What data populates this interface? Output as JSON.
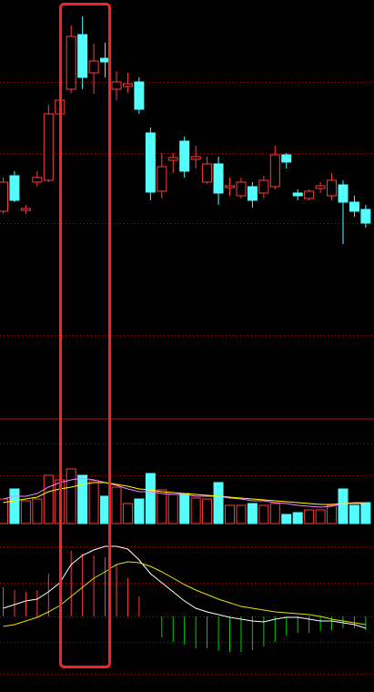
{
  "chart_data": [
    {
      "type": "candlestick",
      "up_color": "#ff3b3b",
      "down_color": "#54fcfc",
      "open": [
        228,
        267,
        229,
        260,
        262,
        335,
        362,
        422,
        380,
        396,
        362,
        365,
        370,
        314,
        250,
        284,
        305,
        285,
        260,
        280,
        254,
        245,
        255,
        248,
        255,
        290,
        248,
        242,
        253,
        245,
        257,
        238,
        230
      ],
      "close": [
        260,
        240,
        231,
        265,
        335,
        350,
        420,
        375,
        393,
        392,
        370,
        368,
        340,
        249,
        277,
        287,
        272,
        288,
        280,
        248,
        256,
        260,
        240,
        262,
        290,
        282,
        245,
        250,
        256,
        262,
        238,
        228,
        215
      ],
      "high": [
        265,
        272,
        235,
        272,
        345,
        355,
        432,
        442,
        412,
        413,
        382,
        380,
        375,
        320,
        292,
        292,
        310,
        300,
        288,
        288,
        265,
        265,
        260,
        267,
        300,
        292,
        252,
        252,
        260,
        270,
        262,
        245,
        235
      ],
      "low": [
        225,
        238,
        225,
        255,
        260,
        330,
        358,
        362,
        357,
        375,
        350,
        358,
        335,
        240,
        242,
        270,
        265,
        275,
        258,
        235,
        245,
        242,
        232,
        242,
        252,
        275,
        240,
        240,
        248,
        240,
        192,
        222,
        210
      ],
      "ylim": [
        0,
        460
      ],
      "yticks": [
        92,
        215,
        292,
        370
      ],
      "grid": true
    },
    {
      "type": "volume",
      "values": [
        27,
        38,
        25,
        27,
        53,
        48,
        60,
        53,
        47,
        30,
        40,
        22,
        27,
        55,
        37,
        32,
        33,
        28,
        27,
        45,
        20,
        20,
        22,
        20,
        22,
        10,
        12,
        15,
        15,
        20,
        38,
        20,
        23
      ],
      "series": [
        {
          "color": "#ff80ff",
          "values": [
            27,
            30,
            30,
            33,
            40,
            45,
            48,
            50,
            48,
            45,
            42,
            38,
            35,
            35,
            33,
            32,
            32,
            30,
            30,
            30,
            28,
            27,
            25,
            25,
            23,
            22,
            20,
            19,
            18,
            19,
            22,
            23,
            23
          ]
        },
        {
          "color": "#ffff00",
          "values": [
            23,
            25,
            27,
            29,
            35,
            38,
            40,
            43,
            45,
            45,
            43,
            41,
            38,
            37,
            35,
            34,
            33,
            32,
            31,
            30,
            29,
            28,
            27,
            26,
            25,
            24,
            23,
            22,
            21,
            21,
            22,
            22,
            22
          ]
        }
      ],
      "ylim": [
        0,
        115
      ],
      "yticks": [
        53,
        88
      ],
      "grid": true
    },
    {
      "type": "macd",
      "up_color": "#ff3b3b",
      "down_color": "#00d000",
      "values": [
        32,
        29,
        27,
        29,
        47,
        52,
        72,
        69,
        67,
        65,
        57,
        42,
        22,
        0,
        -23,
        -28,
        -31,
        -35,
        -35,
        -38,
        -39,
        -39,
        -37,
        -33,
        -28,
        -21,
        -18,
        -18,
        -16,
        -15,
        -13,
        -13,
        -15
      ],
      "series": [
        {
          "color": "#ffffff",
          "values": [
            9,
            13,
            17,
            19,
            27,
            37,
            57,
            67,
            73,
            77,
            77,
            74,
            62,
            47,
            37,
            27,
            17,
            9,
            5,
            2,
            -1,
            -3,
            -5,
            -6,
            -3,
            -1,
            -1,
            -3,
            -5,
            -5,
            -7,
            -9,
            -13
          ]
        },
        {
          "color": "#e8e000",
          "values": [
            -11,
            -9,
            -5,
            -1,
            5,
            12,
            22,
            32,
            42,
            49,
            57,
            60,
            59,
            55,
            49,
            42,
            35,
            29,
            24,
            19,
            15,
            11,
            9,
            7,
            5,
            4,
            3,
            2,
            0,
            -3,
            -5,
            -7,
            -9
          ]
        }
      ],
      "ylim": [
        -83,
        87
      ],
      "yticks": [
        -63,
        -28,
        0,
        37,
        77
      ],
      "grid": true
    }
  ]
}
